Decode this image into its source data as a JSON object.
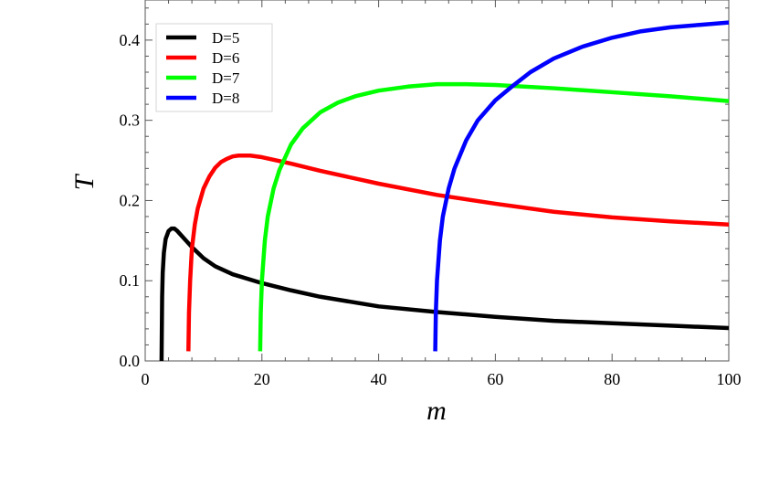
{
  "chart_data": {
    "type": "line",
    "title": "",
    "xlabel": "m",
    "ylabel": "T",
    "xlim": [
      0,
      100
    ],
    "ylim": [
      0,
      0.45
    ],
    "xticks": [
      0,
      20,
      40,
      60,
      80,
      100
    ],
    "xtick_labels": [
      "0",
      "20",
      "40",
      "60",
      "80",
      "100"
    ],
    "yticks": [
      0.0,
      0.1,
      0.2,
      0.3,
      0.4
    ],
    "ytick_labels": [
      "0.0",
      "0.1",
      "0.2",
      "0.3",
      "0.4"
    ],
    "grid": false,
    "legend_position": "top-left",
    "series": [
      {
        "name": "D=5",
        "color": "#000000",
        "x": [
          2.8,
          2.9,
          3.0,
          3.2,
          3.5,
          4.0,
          4.5,
          5.0,
          5.5,
          6.0,
          7.0,
          8.0,
          10.0,
          12.0,
          15.0,
          20.0,
          25.0,
          30.0,
          40.0,
          50.0,
          60.0,
          70.0,
          80.0,
          90.0,
          100.0
        ],
        "y": [
          0.0,
          0.08,
          0.11,
          0.135,
          0.152,
          0.162,
          0.165,
          0.165,
          0.162,
          0.158,
          0.15,
          0.142,
          0.128,
          0.118,
          0.108,
          0.097,
          0.088,
          0.08,
          0.068,
          0.061,
          0.055,
          0.05,
          0.047,
          0.044,
          0.041
        ]
      },
      {
        "name": "D=6",
        "color": "#ff0000",
        "x": [
          7.4,
          7.5,
          7.7,
          8.0,
          8.5,
          9.0,
          10.0,
          11.0,
          12.0,
          13.0,
          14.0,
          15.0,
          16.0,
          17.0,
          18.0,
          20.0,
          25.0,
          30.0,
          40.0,
          50.0,
          60.0,
          70.0,
          80.0,
          90.0,
          100.0
        ],
        "y": [
          0.012,
          0.06,
          0.1,
          0.14,
          0.17,
          0.19,
          0.215,
          0.23,
          0.241,
          0.248,
          0.252,
          0.255,
          0.256,
          0.256,
          0.256,
          0.254,
          0.246,
          0.237,
          0.221,
          0.207,
          0.196,
          0.186,
          0.179,
          0.174,
          0.17
        ]
      },
      {
        "name": "D=7",
        "color": "#00ff00",
        "x": [
          19.7,
          19.8,
          20.0,
          20.5,
          21.0,
          22.0,
          23.0,
          25.0,
          27.0,
          30.0,
          33.0,
          36.0,
          40.0,
          45.0,
          50.0,
          55.0,
          60.0,
          70.0,
          80.0,
          90.0,
          100.0
        ],
        "y": [
          0.012,
          0.06,
          0.1,
          0.15,
          0.18,
          0.215,
          0.238,
          0.27,
          0.29,
          0.31,
          0.322,
          0.33,
          0.337,
          0.342,
          0.345,
          0.345,
          0.344,
          0.34,
          0.335,
          0.33,
          0.324
        ]
      },
      {
        "name": "D=8",
        "color": "#0000ff",
        "x": [
          49.7,
          49.8,
          50.0,
          50.5,
          51.0,
          52.0,
          53.0,
          55.0,
          57.0,
          60.0,
          63.0,
          66.0,
          70.0,
          75.0,
          80.0,
          85.0,
          90.0,
          95.0,
          100.0
        ],
        "y": [
          0.012,
          0.06,
          0.1,
          0.15,
          0.18,
          0.215,
          0.24,
          0.275,
          0.3,
          0.325,
          0.343,
          0.36,
          0.377,
          0.392,
          0.403,
          0.411,
          0.416,
          0.419,
          0.422
        ]
      }
    ]
  }
}
